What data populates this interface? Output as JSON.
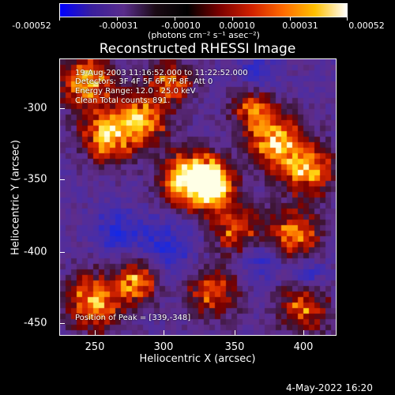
{
  "colorbar": {
    "tick_labels": [
      "-0.00052",
      "-0.00031",
      "-0.00010",
      "0.00010",
      "0.00031",
      "0.00052"
    ],
    "unit_label": "(photons cm⁻² s⁻¹ asec⁻²)",
    "colors": [
      "#0000ff",
      "#3a1f9c",
      "#5a2d8c",
      "#1a0a14",
      "#000000",
      "#7a0000",
      "#d02000",
      "#ff6a00",
      "#ffc000",
      "#ffffff"
    ]
  },
  "title": "Reconstructed RHESSI Image",
  "info": {
    "time_range": "19-Aug-2003 11:16:52.000 to 11:22:52.000",
    "detectors": "Detectors: 3F 4F 5F 6F 7F 8F, Att 0",
    "energy_range": "Energy Range: 12.0 - 25.0 keV",
    "clean": "Clean    Total counts: 891.",
    "peak": "Position of Peak = [339,-348]"
  },
  "axes": {
    "xlabel": "Heliocentric X (arcsec)",
    "ylabel": "Heliocentric Y (arcsec)",
    "xticks": [
      "250",
      "300",
      "350",
      "400"
    ],
    "yticks": [
      "-300",
      "-350",
      "-400",
      "-450"
    ],
    "xlim": [
      226,
      419
    ],
    "ylim": [
      -457,
      -264
    ]
  },
  "timestamp": "4-May-2022 16:20"
}
